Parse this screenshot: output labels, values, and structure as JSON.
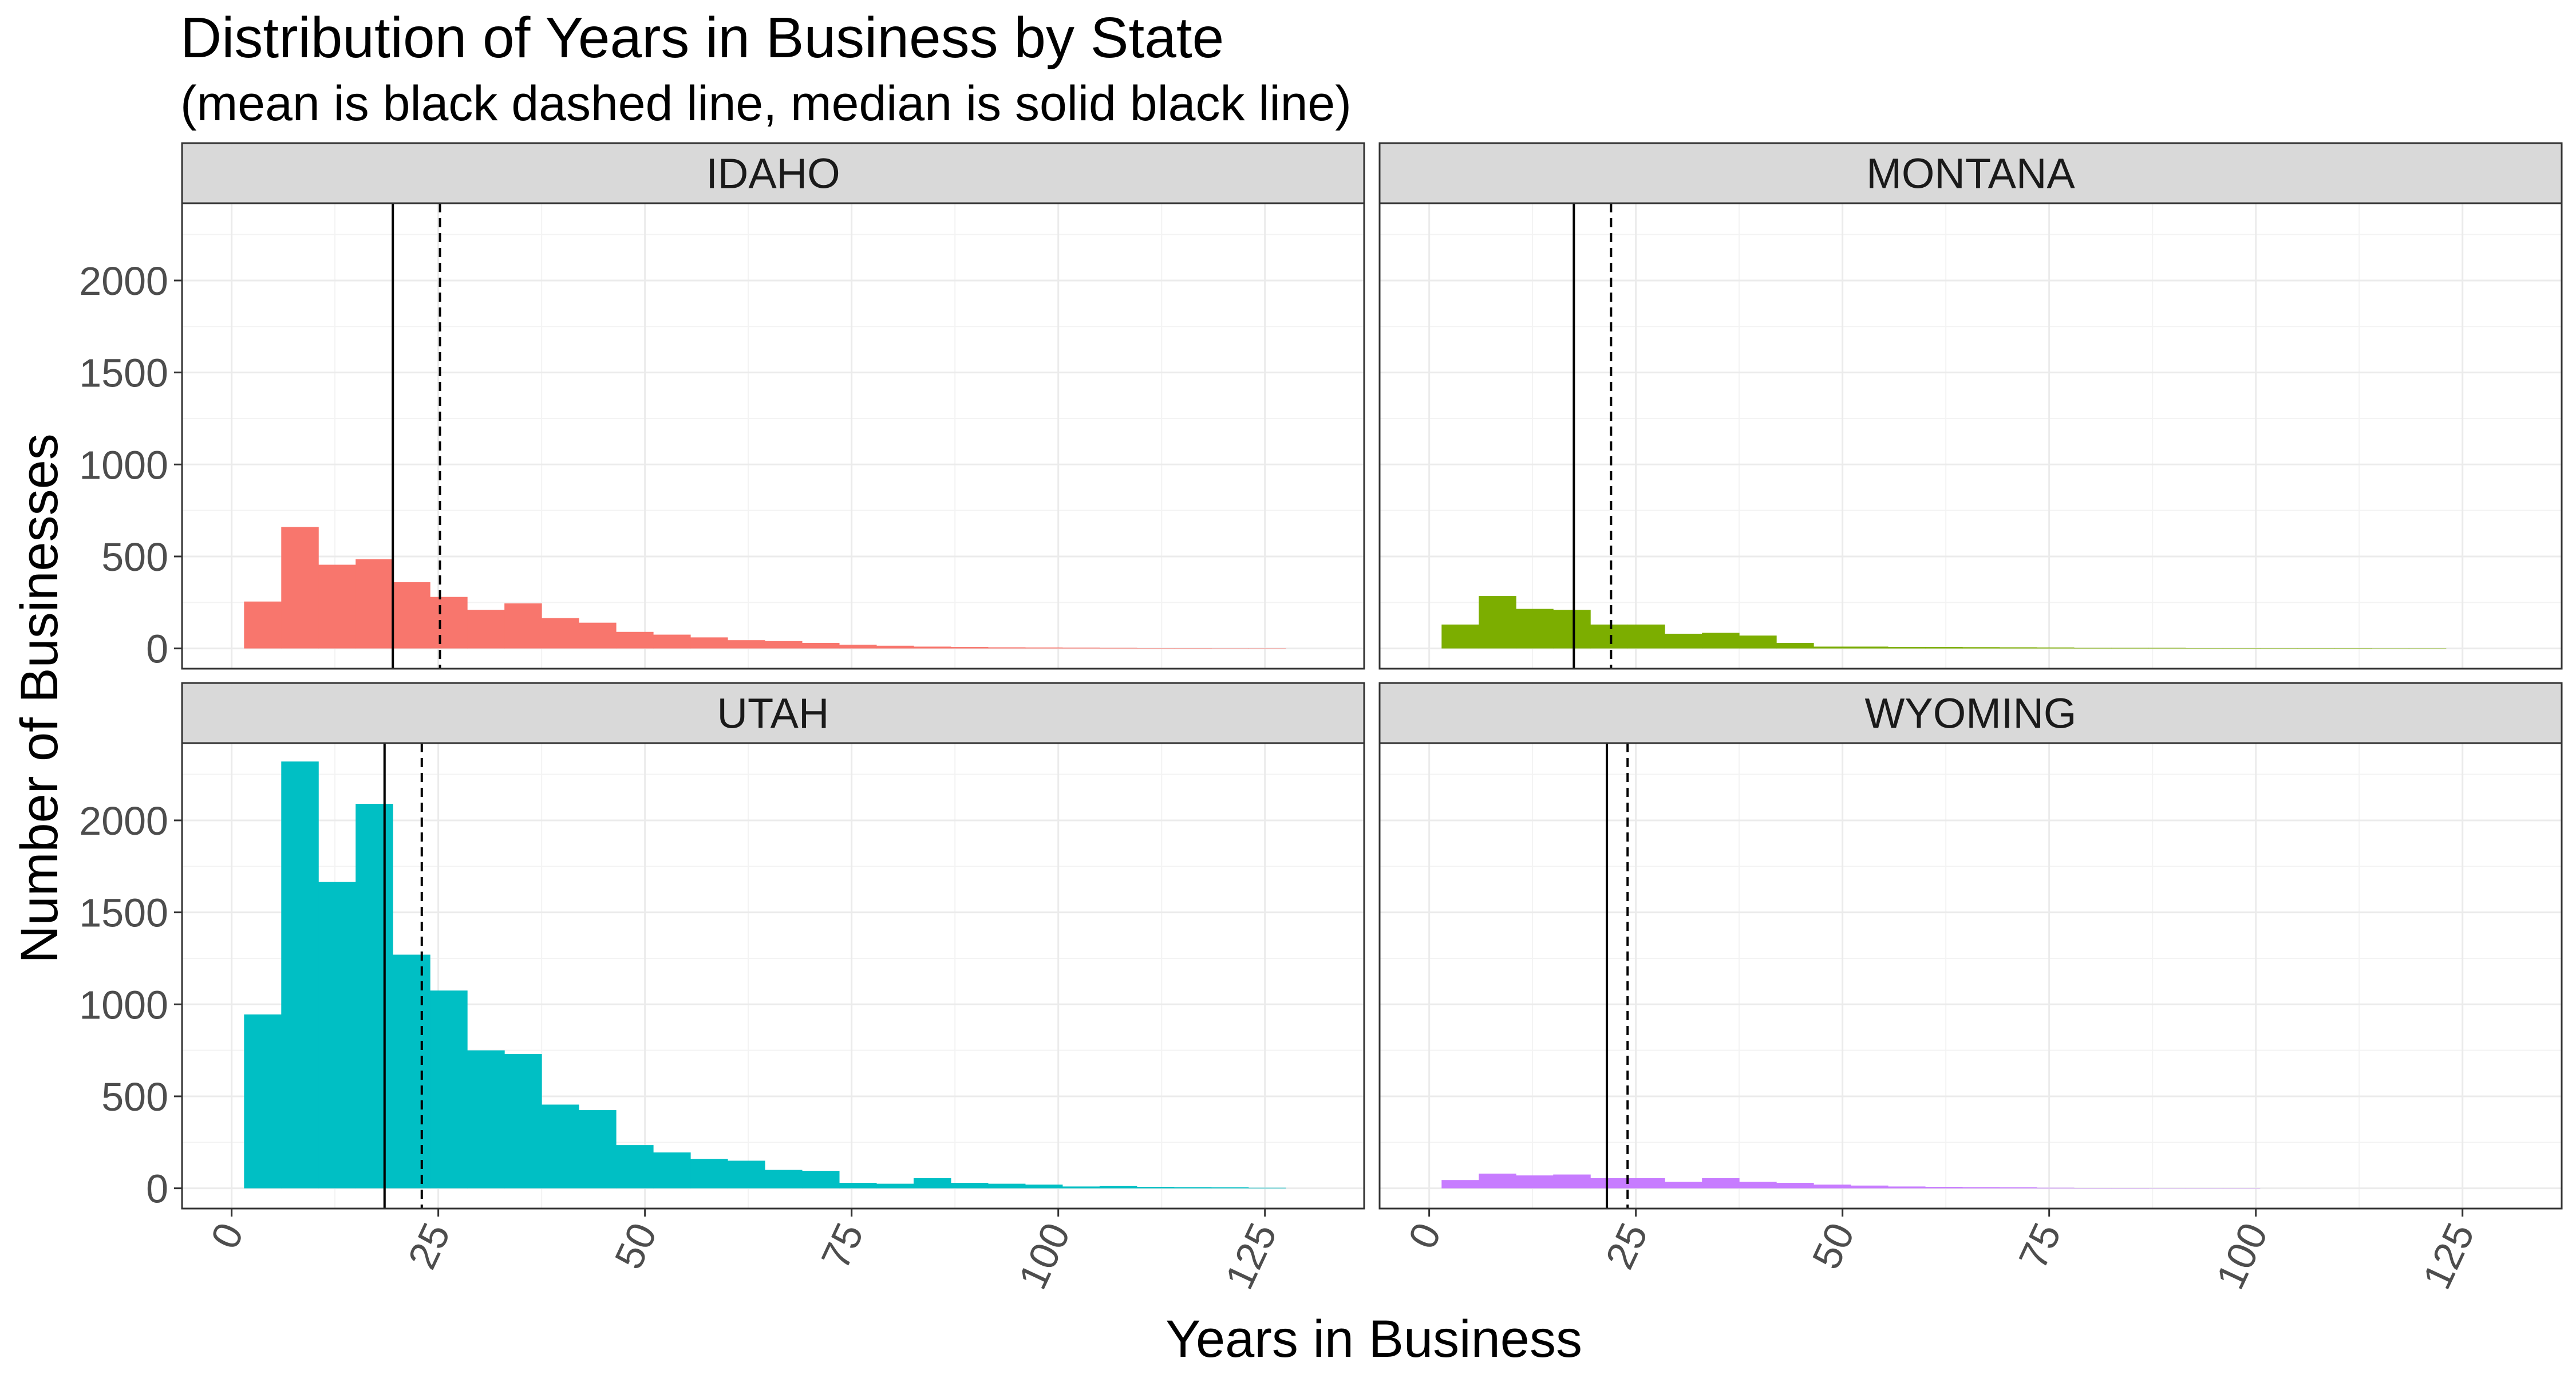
{
  "chart_data": {
    "type": "histogram-facets",
    "title": "Distribution of Years in Business by State",
    "subtitle": "(mean is black dashed line, median is solid black line)",
    "xlabel": "Years in Business",
    "ylabel": "Number of Businesses",
    "xlim": [
      -6,
      137
    ],
    "ylim": [
      -110,
      2420
    ],
    "x_ticks": [
      0,
      25,
      50,
      75,
      100,
      125
    ],
    "y_ticks": [
      0,
      500,
      1000,
      1500,
      2000
    ],
    "bin_width": 4.5,
    "bin_start": 1.5,
    "grid": true,
    "legend": "none",
    "panels": [
      {
        "name": "IDAHO",
        "color": "#F8766D",
        "median": 19.5,
        "mean": 25.2,
        "values": [
          255,
          660,
          455,
          485,
          360,
          280,
          210,
          245,
          165,
          140,
          90,
          75,
          60,
          45,
          40,
          30,
          20,
          15,
          10,
          8,
          6,
          5,
          4,
          3,
          2,
          2,
          1,
          1
        ]
      },
      {
        "name": "MONTANA",
        "color": "#7CAE00",
        "median": 17.5,
        "mean": 22.0,
        "values": [
          130,
          285,
          215,
          210,
          130,
          130,
          80,
          85,
          70,
          30,
          10,
          10,
          8,
          8,
          7,
          6,
          5,
          3,
          3,
          3,
          2,
          2,
          2,
          2,
          2,
          1,
          1
        ]
      },
      {
        "name": "UTAH",
        "color": "#00BFC4",
        "median": 18.5,
        "mean": 23.0,
        "values": [
          945,
          2320,
          1665,
          2090,
          1270,
          1075,
          750,
          730,
          455,
          425,
          235,
          195,
          160,
          150,
          100,
          95,
          30,
          25,
          55,
          30,
          25,
          20,
          10,
          12,
          8,
          6,
          5,
          3
        ]
      },
      {
        "name": "WYOMING",
        "color": "#C77CFF",
        "median": 21.5,
        "mean": 24.0,
        "values": [
          45,
          80,
          70,
          75,
          55,
          55,
          35,
          55,
          35,
          30,
          20,
          15,
          10,
          8,
          6,
          5,
          3,
          2,
          2,
          1,
          1,
          1
        ]
      }
    ]
  }
}
